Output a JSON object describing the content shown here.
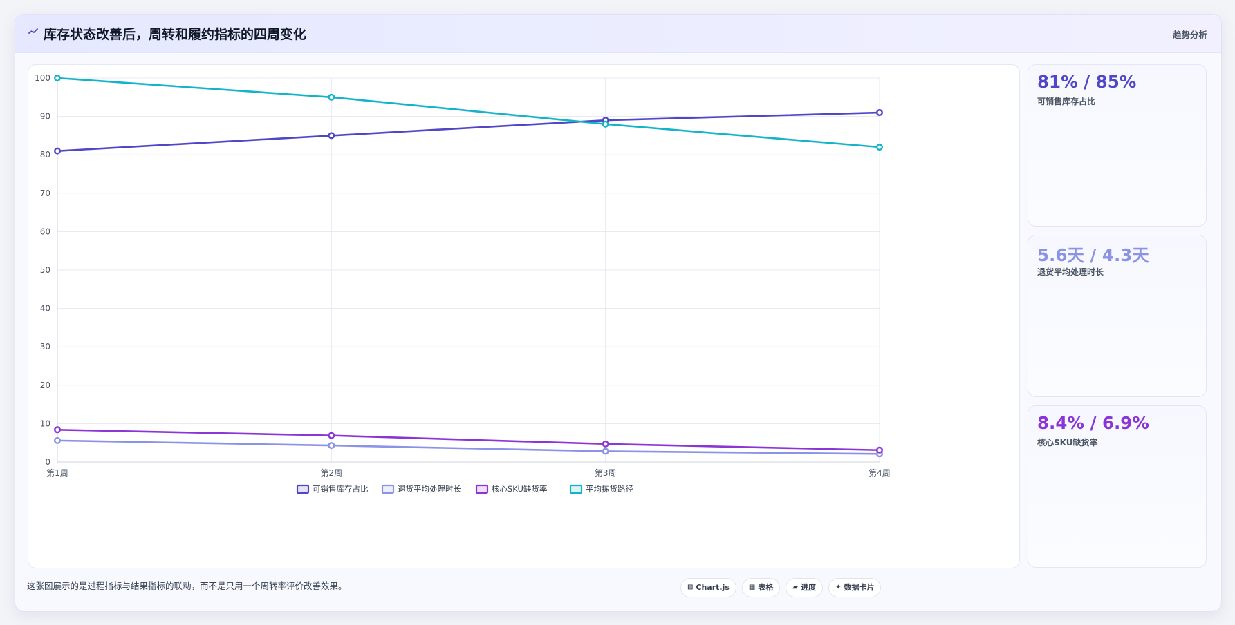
{
  "header": {
    "title": "库存状态改善后，周转和履约指标的四周变化",
    "tag": "趋势分析",
    "icon": "trend-line-icon"
  },
  "colors": {
    "series1": "#4f46c8",
    "series2": "#8b93e6",
    "series3": "#8b35d6",
    "series4": "#13b3c9",
    "grid": "#e6e8ef"
  },
  "chart_data": {
    "type": "line",
    "title": "",
    "xlabel": "",
    "ylabel": "",
    "categories": [
      "第1周",
      "第2周",
      "第3周",
      "第4周"
    ],
    "ylim": [
      0,
      100
    ],
    "yticks": [
      0,
      10,
      20,
      30,
      40,
      50,
      60,
      70,
      80,
      90,
      100
    ],
    "grid": true,
    "legend": "bottom",
    "series": [
      {
        "name": "可销售库存占比",
        "values": [
          81,
          85,
          89,
          91
        ]
      },
      {
        "name": "退货平均处理时长",
        "values": [
          5.6,
          4.3,
          2.8,
          2.1
        ]
      },
      {
        "name": "核心SKU缺货率",
        "values": [
          8.4,
          6.9,
          4.7,
          3.1
        ]
      },
      {
        "name": "平均拣货路径",
        "values": [
          100,
          95,
          88,
          82
        ]
      }
    ]
  },
  "metrics": [
    {
      "value": "81% / 85%",
      "label": "可销售库存占比"
    },
    {
      "value": "5.6天 / 4.3天",
      "label": "退货平均处理时长"
    },
    {
      "value": "8.4% / 6.9%",
      "label": "核心SKU缺货率"
    }
  ],
  "footnote": "这张图展示的是过程指标与结果指标的联动，而不是只用一个周转率评价改善效果。",
  "chips": [
    {
      "label": "Chart.js",
      "icon": "chart-icon",
      "glyph": "⊟"
    },
    {
      "label": "表格",
      "icon": "table-icon",
      "glyph": "▦"
    },
    {
      "label": "进度",
      "icon": "progress-icon",
      "glyph": "▰"
    },
    {
      "label": "数据卡片",
      "icon": "card-icon",
      "glyph": "✦"
    }
  ]
}
